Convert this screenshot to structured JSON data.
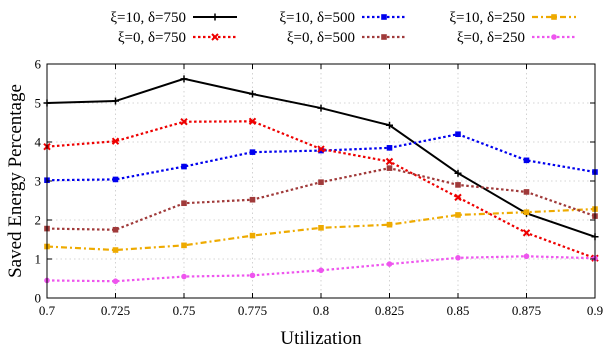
{
  "chart_data": {
    "type": "line",
    "xlabel": "Utilization",
    "ylabel": "Saved Energy Percentage",
    "xlim": [
      0.7,
      0.9
    ],
    "ylim": [
      0,
      6
    ],
    "x": [
      0.7,
      0.725,
      0.75,
      0.775,
      0.8,
      0.825,
      0.85,
      0.875,
      0.9
    ],
    "x_tick_labels": [
      "0.7",
      "0.725",
      "0.75",
      "0.775",
      "0.8",
      "0.825",
      "0.85",
      "0.875",
      "0.9"
    ],
    "y_ticks": [
      0,
      1,
      2,
      3,
      4,
      5,
      6
    ],
    "y_tick_labels": [
      "0",
      "1",
      "2",
      "3",
      "4",
      "5",
      "6"
    ],
    "grid": true,
    "legend_placement": "top, outside plot",
    "series": [
      {
        "name": "ξ=10, δ=750",
        "color": "#000000",
        "marker": "plus",
        "dash": "solid",
        "values": [
          5.0,
          5.05,
          5.62,
          5.23,
          4.87,
          4.43,
          3.2,
          2.17,
          1.57
        ]
      },
      {
        "name": "ξ=10, δ=500",
        "color": "#0000ee",
        "marker": "square",
        "dash": "dot",
        "values": [
          3.02,
          3.04,
          3.37,
          3.74,
          3.78,
          3.85,
          4.2,
          3.53,
          3.23
        ]
      },
      {
        "name": "ξ=10, δ=250",
        "color": "#eeaa00",
        "marker": "square",
        "dash": "dashdot",
        "values": [
          1.32,
          1.23,
          1.35,
          1.6,
          1.8,
          1.88,
          2.13,
          2.2,
          2.28
        ]
      },
      {
        "name": "ξ=0, δ=750",
        "color": "#ee0000",
        "marker": "x",
        "dash": "dot",
        "values": [
          3.88,
          4.02,
          4.52,
          4.53,
          3.82,
          3.5,
          2.58,
          1.67,
          1.02
        ]
      },
      {
        "name": "ξ=0, δ=500",
        "color": "#a03a3a",
        "marker": "square",
        "dash": "dot",
        "values": [
          1.78,
          1.75,
          2.43,
          2.52,
          2.97,
          3.33,
          2.9,
          2.72,
          2.1
        ]
      },
      {
        "name": "ξ=0, δ=250",
        "color": "#ee55ee",
        "marker": "circle",
        "dash": "dot",
        "values": [
          0.45,
          0.43,
          0.55,
          0.58,
          0.71,
          0.87,
          1.03,
          1.07,
          1.02
        ]
      }
    ]
  }
}
